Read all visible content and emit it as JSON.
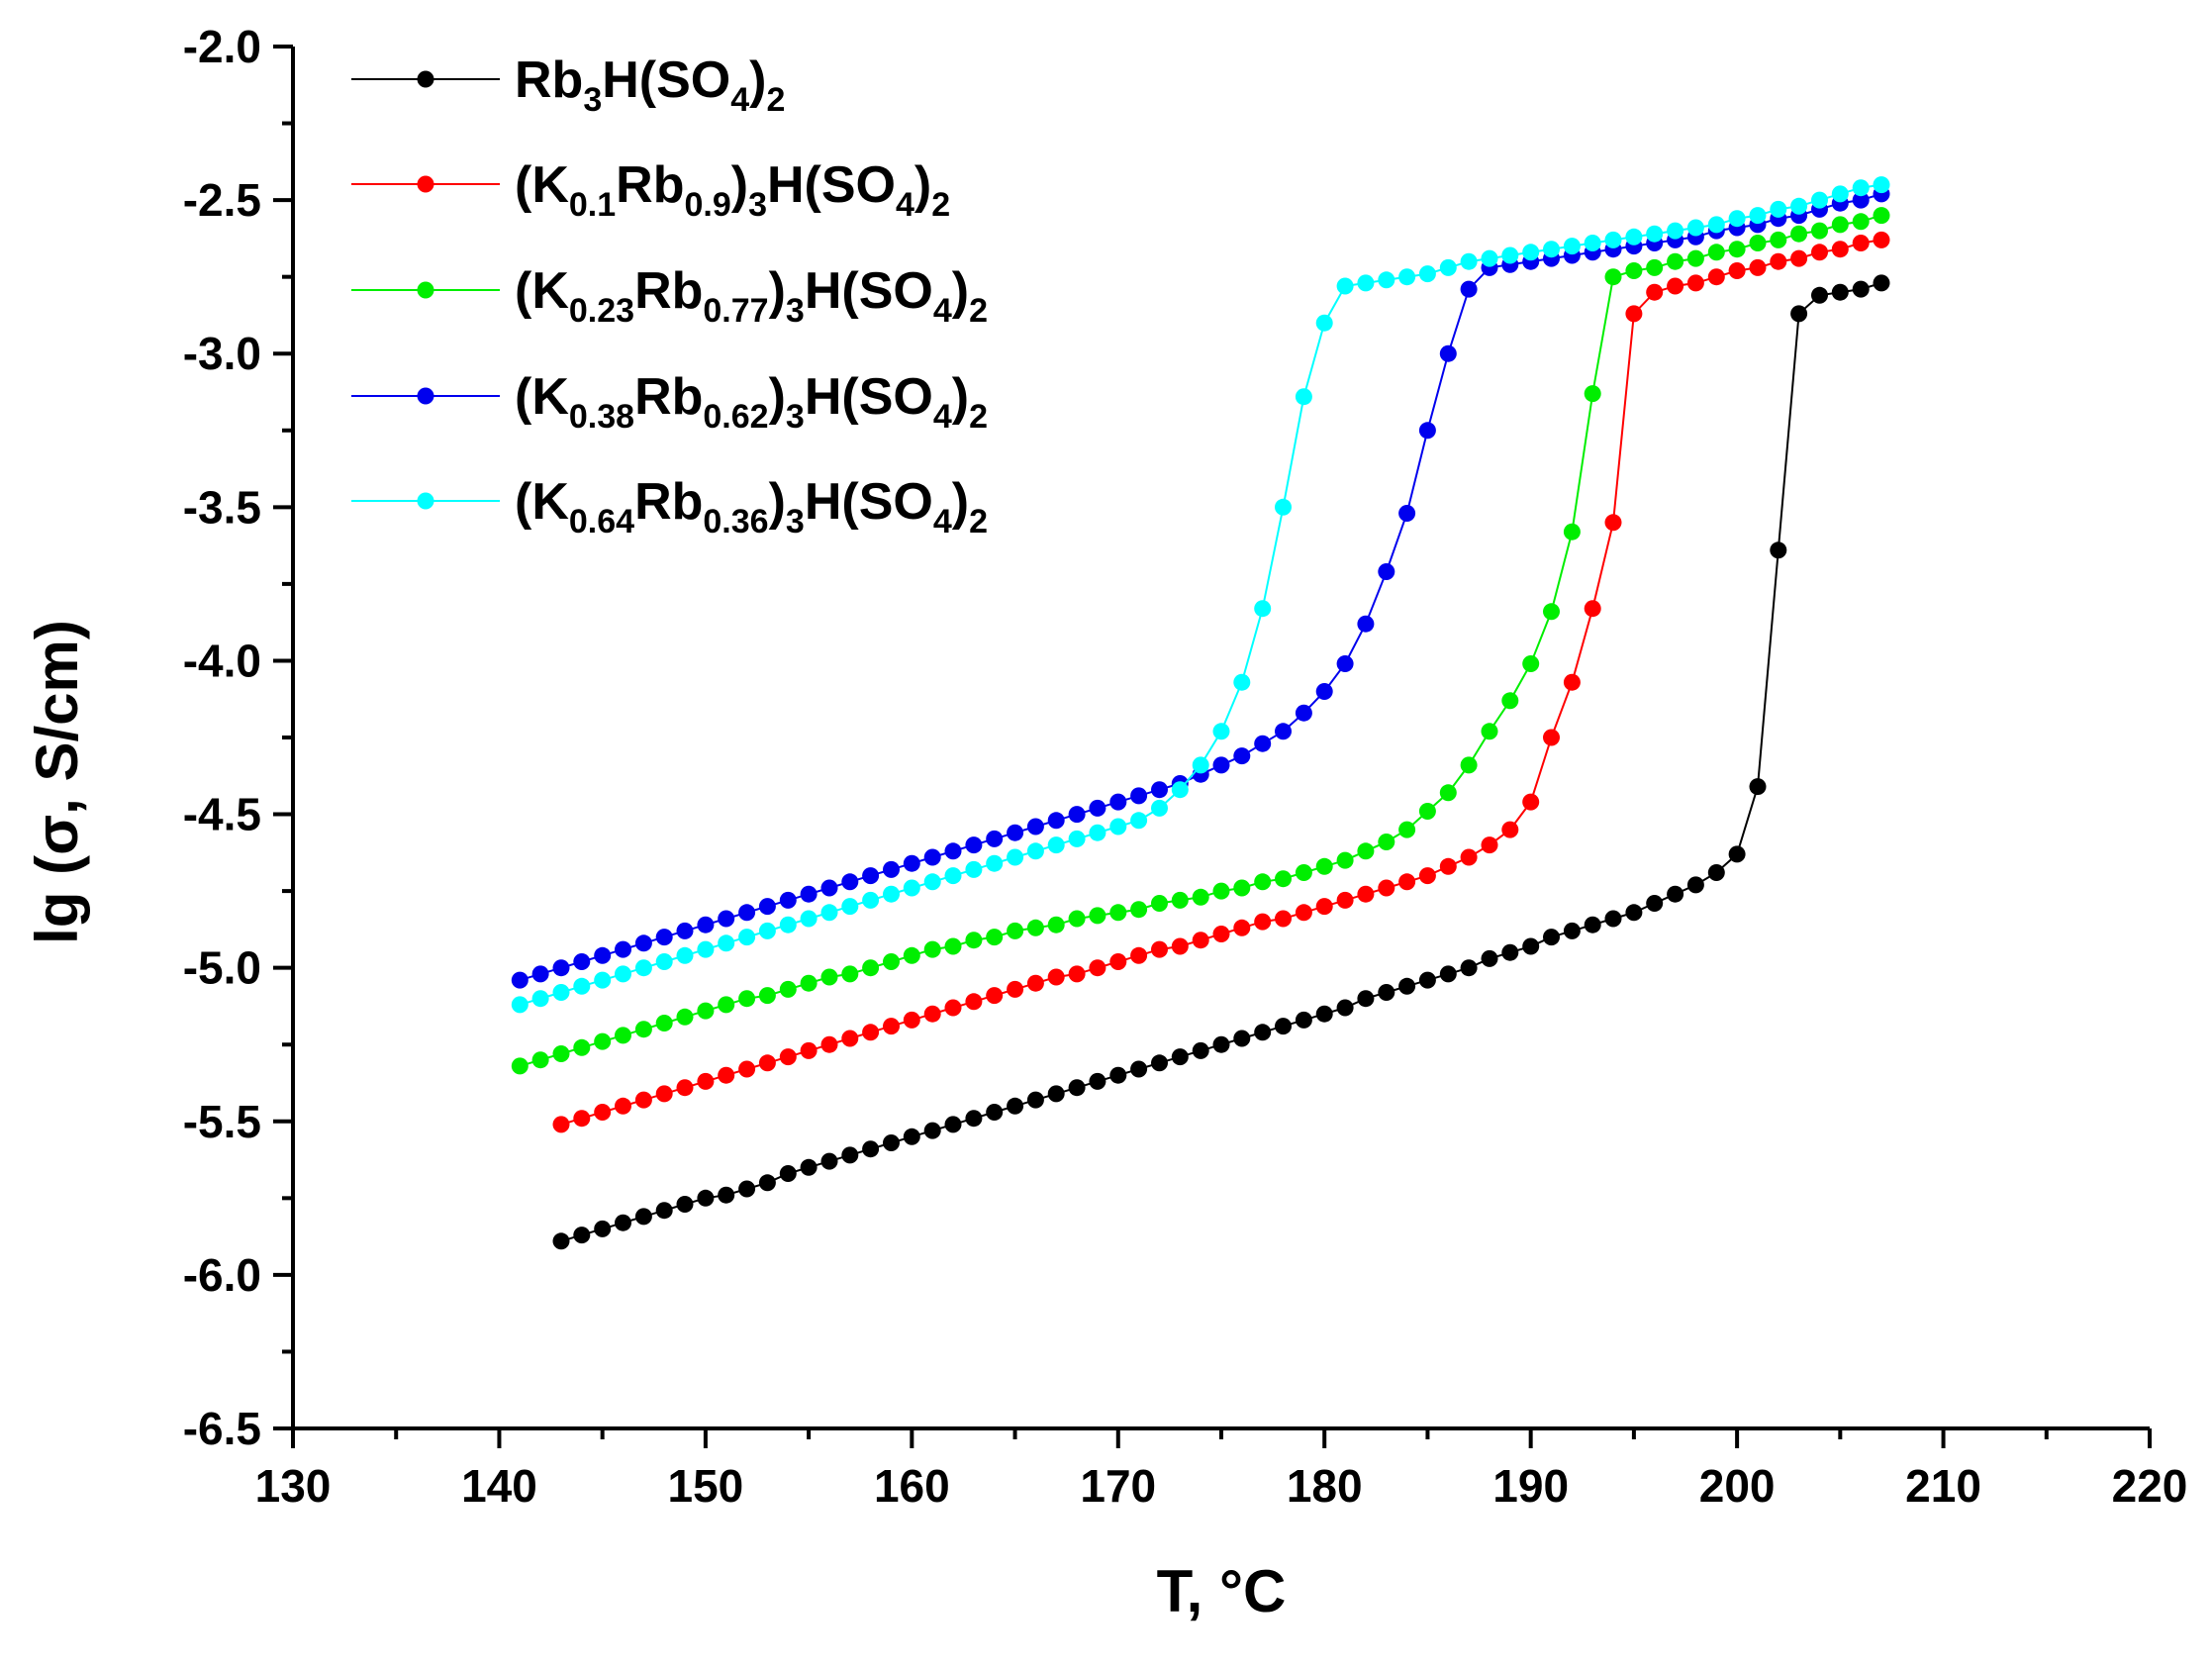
{
  "chart_data": {
    "type": "scatter",
    "title": "",
    "xlabel": "T, °C",
    "ylabel": "lg (σ, S/cm)",
    "xlim": [
      130,
      220
    ],
    "ylim": [
      -6.5,
      -2.0
    ],
    "xticks": [
      "130",
      "140",
      "150",
      "160",
      "170",
      "180",
      "190",
      "200",
      "210",
      "220"
    ],
    "yticks": [
      "-2.0",
      "-2.5",
      "-3.0",
      "-3.5",
      "-4.0",
      "-4.5",
      "-5.0",
      "-5.5",
      "-6.0",
      "-6.5"
    ],
    "legend_position": "top-left",
    "series": [
      {
        "name": "Rb3H(SO4)2",
        "label_parts": [
          {
            "t": "Rb"
          },
          {
            "t": "3",
            "sub": true
          },
          {
            "t": "H(SO"
          },
          {
            "t": "4",
            "sub": true
          },
          {
            "t": ")"
          },
          {
            "t": "2",
            "sub": true
          }
        ],
        "color": "#000000",
        "x": [
          143,
          144,
          145,
          146,
          147,
          148,
          149,
          150,
          151,
          152,
          153,
          154,
          155,
          156,
          157,
          158,
          159,
          160,
          161,
          162,
          163,
          164,
          165,
          166,
          167,
          168,
          169,
          170,
          171,
          172,
          173,
          174,
          175,
          176,
          177,
          178,
          179,
          180,
          181,
          182,
          183,
          184,
          185,
          186,
          187,
          188,
          189,
          190,
          191,
          192,
          193,
          194,
          195,
          196,
          197,
          198,
          199,
          200,
          201,
          202,
          203,
          204,
          205,
          206,
          207
        ],
        "y": [
          -5.89,
          -5.87,
          -5.85,
          -5.83,
          -5.81,
          -5.79,
          -5.77,
          -5.75,
          -5.74,
          -5.72,
          -5.7,
          -5.67,
          -5.65,
          -5.63,
          -5.61,
          -5.59,
          -5.57,
          -5.55,
          -5.53,
          -5.51,
          -5.49,
          -5.47,
          -5.45,
          -5.43,
          -5.41,
          -5.39,
          -5.37,
          -5.35,
          -5.33,
          -5.31,
          -5.29,
          -5.27,
          -5.25,
          -5.23,
          -5.21,
          -5.19,
          -5.17,
          -5.15,
          -5.13,
          -5.1,
          -5.08,
          -5.06,
          -5.04,
          -5.02,
          -5.0,
          -4.97,
          -4.95,
          -4.93,
          -4.9,
          -4.88,
          -4.86,
          -4.84,
          -4.82,
          -4.79,
          -4.76,
          -4.73,
          -4.69,
          -4.63,
          -4.41,
          -3.64,
          -2.87,
          -2.81,
          -2.8,
          -2.79,
          -2.77
        ]
      },
      {
        "name": "(K0.1Rb0.9)3H(SO4)2",
        "label_parts": [
          {
            "t": "(K"
          },
          {
            "t": "0.1",
            "sub": true
          },
          {
            "t": "Rb"
          },
          {
            "t": "0.9",
            "sub": true
          },
          {
            "t": ")"
          },
          {
            "t": "3",
            "sub": true
          },
          {
            "t": "H(SO"
          },
          {
            "t": "4",
            "sub": true
          },
          {
            "t": ")"
          },
          {
            "t": "2",
            "sub": true
          }
        ],
        "color": "#ff0000",
        "x": [
          143,
          144,
          145,
          146,
          147,
          148,
          149,
          150,
          151,
          152,
          153,
          154,
          155,
          156,
          157,
          158,
          159,
          160,
          161,
          162,
          163,
          164,
          165,
          166,
          167,
          168,
          169,
          170,
          171,
          172,
          173,
          174,
          175,
          176,
          177,
          178,
          179,
          180,
          181,
          182,
          183,
          184,
          185,
          186,
          187,
          188,
          189,
          190,
          191,
          192,
          193,
          194,
          195,
          196,
          197,
          198,
          199,
          200,
          201,
          202,
          203,
          204,
          205,
          206,
          207
        ],
        "y": [
          -5.51,
          -5.49,
          -5.47,
          -5.45,
          -5.43,
          -5.41,
          -5.39,
          -5.37,
          -5.35,
          -5.33,
          -5.31,
          -5.29,
          -5.27,
          -5.25,
          -5.23,
          -5.21,
          -5.19,
          -5.17,
          -5.15,
          -5.13,
          -5.11,
          -5.09,
          -5.07,
          -5.05,
          -5.03,
          -5.02,
          -5.0,
          -4.98,
          -4.96,
          -4.94,
          -4.93,
          -4.91,
          -4.89,
          -4.87,
          -4.85,
          -4.84,
          -4.82,
          -4.8,
          -4.78,
          -4.76,
          -4.74,
          -4.72,
          -4.7,
          -4.67,
          -4.64,
          -4.6,
          -4.55,
          -4.46,
          -4.25,
          -4.07,
          -3.83,
          -3.55,
          -2.87,
          -2.8,
          -2.78,
          -2.77,
          -2.75,
          -2.73,
          -2.72,
          -2.7,
          -2.69,
          -2.67,
          -2.66,
          -2.64,
          -2.63
        ]
      },
      {
        "name": "(K0.23Rb0.77)3H(SO4)2",
        "label_parts": [
          {
            "t": "(K"
          },
          {
            "t": "0.23",
            "sub": true
          },
          {
            "t": "Rb"
          },
          {
            "t": "0.77",
            "sub": true
          },
          {
            "t": ")"
          },
          {
            "t": "3",
            "sub": true
          },
          {
            "t": "H(SO"
          },
          {
            "t": "4",
            "sub": true
          },
          {
            "t": ")"
          },
          {
            "t": "2",
            "sub": true
          }
        ],
        "color": "#00ee00",
        "x": [
          141,
          142,
          143,
          144,
          145,
          146,
          147,
          148,
          149,
          150,
          151,
          152,
          153,
          154,
          155,
          156,
          157,
          158,
          159,
          160,
          161,
          162,
          163,
          164,
          165,
          166,
          167,
          168,
          169,
          170,
          171,
          172,
          173,
          174,
          175,
          176,
          177,
          178,
          179,
          180,
          181,
          182,
          183,
          184,
          185,
          186,
          187,
          188,
          189,
          190,
          191,
          192,
          193,
          194,
          195,
          196,
          197,
          198,
          199,
          200,
          201,
          202,
          203,
          204,
          205,
          206,
          207
        ],
        "y": [
          -5.32,
          -5.3,
          -5.28,
          -5.26,
          -5.24,
          -5.22,
          -5.2,
          -5.18,
          -5.16,
          -5.14,
          -5.12,
          -5.1,
          -5.09,
          -5.07,
          -5.05,
          -5.03,
          -5.02,
          -5.0,
          -4.98,
          -4.96,
          -4.94,
          -4.93,
          -4.91,
          -4.9,
          -4.88,
          -4.87,
          -4.86,
          -4.84,
          -4.83,
          -4.82,
          -4.81,
          -4.79,
          -4.78,
          -4.77,
          -4.75,
          -4.74,
          -4.72,
          -4.71,
          -4.69,
          -4.67,
          -4.65,
          -4.62,
          -4.59,
          -4.55,
          -4.49,
          -4.43,
          -4.34,
          -4.23,
          -4.13,
          -4.01,
          -3.84,
          -3.58,
          -3.13,
          -2.75,
          -2.73,
          -2.72,
          -2.7,
          -2.69,
          -2.67,
          -2.66,
          -2.64,
          -2.63,
          -2.61,
          -2.6,
          -2.58,
          -2.57,
          -2.55
        ]
      },
      {
        "name": "(K0.38Rb0.62)3H(SO4)2",
        "label_parts": [
          {
            "t": "(K"
          },
          {
            "t": "0.38",
            "sub": true
          },
          {
            "t": "Rb"
          },
          {
            "t": "0.62",
            "sub": true
          },
          {
            "t": ")"
          },
          {
            "t": "3",
            "sub": true
          },
          {
            "t": "H(SO"
          },
          {
            "t": "4",
            "sub": true
          },
          {
            "t": ")"
          },
          {
            "t": "2",
            "sub": true
          }
        ],
        "color": "#0000ee",
        "x": [
          141,
          142,
          143,
          144,
          145,
          146,
          147,
          148,
          149,
          150,
          151,
          152,
          153,
          154,
          155,
          156,
          157,
          158,
          159,
          160,
          161,
          162,
          163,
          164,
          165,
          166,
          167,
          168,
          169,
          170,
          171,
          172,
          173,
          174,
          175,
          176,
          177,
          178,
          179,
          180,
          181,
          182,
          183,
          184,
          185,
          186,
          187,
          188,
          189,
          190,
          191,
          192,
          193,
          194,
          195,
          196,
          197,
          198,
          199,
          200,
          201,
          202,
          203,
          204,
          205,
          206,
          207
        ],
        "y": [
          -5.04,
          -5.02,
          -5.0,
          -4.98,
          -4.96,
          -4.94,
          -4.92,
          -4.9,
          -4.88,
          -4.86,
          -4.84,
          -4.82,
          -4.8,
          -4.78,
          -4.76,
          -4.74,
          -4.72,
          -4.7,
          -4.68,
          -4.66,
          -4.64,
          -4.62,
          -4.6,
          -4.58,
          -4.56,
          -4.54,
          -4.52,
          -4.5,
          -4.48,
          -4.46,
          -4.44,
          -4.42,
          -4.4,
          -4.37,
          -4.34,
          -4.31,
          -4.27,
          -4.23,
          -4.17,
          -4.1,
          -4.01,
          -3.88,
          -3.71,
          -3.52,
          -3.25,
          -3.0,
          -2.79,
          -2.72,
          -2.71,
          -2.7,
          -2.69,
          -2.68,
          -2.67,
          -2.66,
          -2.65,
          -2.64,
          -2.63,
          -2.62,
          -2.6,
          -2.59,
          -2.58,
          -2.56,
          -2.55,
          -2.53,
          -2.51,
          -2.5,
          -2.48
        ]
      },
      {
        "name": "(K0.64Rb0.36)3H(SO4)2",
        "label_parts": [
          {
            "t": "(K"
          },
          {
            "t": "0.64",
            "sub": true
          },
          {
            "t": "Rb"
          },
          {
            "t": "0.36",
            "sub": true
          },
          {
            "t": ")"
          },
          {
            "t": "3",
            "sub": true
          },
          {
            "t": "H(SO"
          },
          {
            "t": "4",
            "sub": true
          },
          {
            "t": ")"
          },
          {
            "t": "2",
            "sub": true
          }
        ],
        "color": "#00ffff",
        "x": [
          141,
          142,
          143,
          144,
          145,
          146,
          147,
          148,
          149,
          150,
          151,
          152,
          153,
          154,
          155,
          156,
          157,
          158,
          159,
          160,
          161,
          162,
          163,
          164,
          165,
          166,
          167,
          168,
          169,
          170,
          171,
          172,
          173,
          174,
          175,
          176,
          177,
          178,
          179,
          180,
          181,
          182,
          183,
          184,
          185,
          186,
          187,
          188,
          189,
          190,
          191,
          192,
          193,
          194,
          195,
          196,
          197,
          198,
          199,
          200,
          201,
          202,
          203,
          204,
          205,
          206,
          207
        ],
        "y": [
          -5.12,
          -5.1,
          -5.08,
          -5.06,
          -5.04,
          -5.02,
          -5.0,
          -4.98,
          -4.96,
          -4.94,
          -4.92,
          -4.9,
          -4.88,
          -4.86,
          -4.84,
          -4.82,
          -4.8,
          -4.78,
          -4.76,
          -4.74,
          -4.72,
          -4.7,
          -4.68,
          -4.66,
          -4.64,
          -4.62,
          -4.6,
          -4.58,
          -4.56,
          -4.54,
          -4.52,
          -4.48,
          -4.42,
          -4.34,
          -4.23,
          -4.07,
          -3.83,
          -3.5,
          -3.14,
          -2.9,
          -2.78,
          -2.77,
          -2.76,
          -2.75,
          -2.74,
          -2.72,
          -2.7,
          -2.69,
          -2.68,
          -2.67,
          -2.66,
          -2.65,
          -2.64,
          -2.63,
          -2.62,
          -2.61,
          -2.6,
          -2.59,
          -2.58,
          -2.56,
          -2.55,
          -2.53,
          -2.52,
          -2.5,
          -2.48,
          -2.46,
          -2.45
        ]
      }
    ]
  }
}
